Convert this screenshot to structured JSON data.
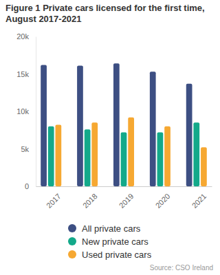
{
  "chart_data": {
    "type": "bar",
    "title": "Figure 1 Private cars licensed for the first time, August 2017-2021",
    "categories": [
      "2017",
      "2018",
      "2019",
      "2020",
      "2021"
    ],
    "series": [
      {
        "name": "All private cars",
        "color": "#3d4f83",
        "values": [
          16200,
          16100,
          16400,
          15300,
          13700
        ]
      },
      {
        "name": "New private cars",
        "color": "#13a98a",
        "values": [
          8000,
          7600,
          7200,
          7200,
          8500
        ]
      },
      {
        "name": "Used private cars",
        "color": "#f6a832",
        "values": [
          8200,
          8500,
          9200,
          8000,
          5200
        ]
      }
    ],
    "ylim": [
      0,
      20000
    ],
    "yticks": [
      0,
      {
        "value": 5000,
        "label": "5k"
      },
      {
        "value": 10000,
        "label": "10k"
      },
      {
        "value": 15000,
        "label": "15k"
      },
      {
        "value": 20000,
        "label": "20k"
      }
    ],
    "grid": false,
    "legend": "bottom",
    "source": "Source: CSO Ireland"
  }
}
